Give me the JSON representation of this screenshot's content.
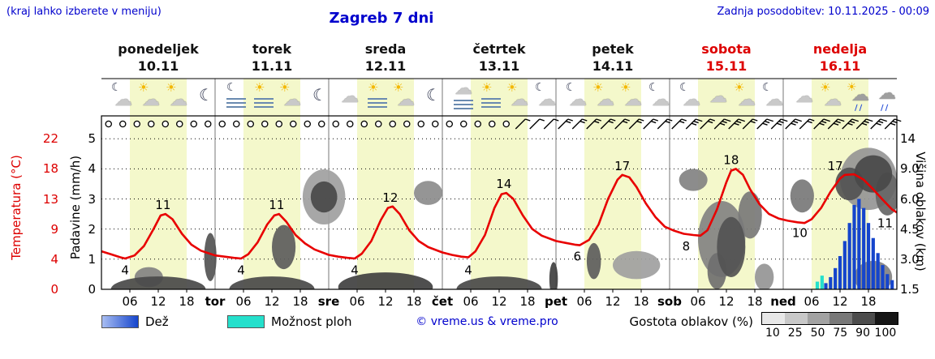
{
  "header": {
    "note": "(kraj lahko izberete v meniju)",
    "title": "Zagreb 7 dni",
    "updated": "Zadnja posodobitev: 10.11.2025 - 00:09"
  },
  "days": [
    {
      "name": "ponedeljek",
      "date": "10.11",
      "weekend": false
    },
    {
      "name": "torek",
      "date": "11.11",
      "weekend": false
    },
    {
      "name": "sreda",
      "date": "12.11",
      "weekend": false
    },
    {
      "name": "četrtek",
      "date": "13.11",
      "weekend": false
    },
    {
      "name": "petek",
      "date": "14.11",
      "weekend": false
    },
    {
      "name": "sobota",
      "date": "15.11",
      "weekend": true
    },
    {
      "name": "nedelja",
      "date": "16.11",
      "weekend": true
    }
  ],
  "axes": {
    "temp": {
      "label": "Temperatura (°C)",
      "ticks": [
        "22",
        "18",
        "13",
        "9",
        "4",
        "0"
      ]
    },
    "precip": {
      "label": "Padavine (mm/h)",
      "ticks": [
        "5",
        "4",
        "3",
        "2",
        "1",
        "0"
      ]
    },
    "cloudheight": {
      "label": "Višina oblakov (km)",
      "ticks": [
        "14",
        "9.0",
        "6.0",
        "4.5",
        "3.0",
        "1.5"
      ]
    },
    "x": {
      "hour_ticks": [
        "06",
        "12",
        "18"
      ],
      "day_boundaries": [
        "tor",
        "sre",
        "čet",
        "pet",
        "sob",
        "ned"
      ]
    }
  },
  "legend": {
    "rain": "Dež",
    "showers": "Možnost ploh",
    "credit": "© vreme.us & vreme.pro",
    "clouds": "Gostota oblakov (%)",
    "cloud_ticks": [
      "10",
      "25",
      "50",
      "75",
      "90",
      "100"
    ]
  },
  "colors": {
    "accent_blue": "#0000cd",
    "red": "#dd0000",
    "band": "#f4f8cb",
    "rain": "#1545cc",
    "shower": "#25e0cc",
    "curve": "#e80000"
  },
  "chart_data": {
    "type": "line",
    "title": "Zagreb 7 dni",
    "x_unit": "hours from 10.11 00:00 (0-168, 7 days)",
    "temp_axis_ticks": [
      0,
      4,
      9,
      13,
      18,
      22
    ],
    "precip_axis_ticks": [
      0,
      1,
      2,
      3,
      4,
      5
    ],
    "cloud_height_ticks_km": [
      1.5,
      3,
      4.5,
      6,
      9,
      14
    ],
    "temperature": [
      [
        0,
        5.3
      ],
      [
        2,
        4.8
      ],
      [
        4,
        4.3
      ],
      [
        5,
        4.1
      ],
      [
        7,
        4.6
      ],
      [
        9,
        6.2
      ],
      [
        11,
        9
      ],
      [
        12.5,
        10.8
      ],
      [
        13.5,
        11
      ],
      [
        15,
        10.3
      ],
      [
        17,
        8.2
      ],
      [
        19,
        6.4
      ],
      [
        21,
        5.4
      ],
      [
        24,
        4.6
      ],
      [
        26,
        4.4
      ],
      [
        28,
        4.2
      ],
      [
        29.5,
        4.1
      ],
      [
        31,
        4.8
      ],
      [
        33,
        6.8
      ],
      [
        35,
        9.6
      ],
      [
        36.5,
        10.8
      ],
      [
        37.5,
        11
      ],
      [
        39,
        10
      ],
      [
        41,
        8
      ],
      [
        43,
        6.6
      ],
      [
        45,
        5.6
      ],
      [
        48,
        4.7
      ],
      [
        50,
        4.4
      ],
      [
        52,
        4.2
      ],
      [
        53.5,
        4.1
      ],
      [
        55,
        4.9
      ],
      [
        57,
        7
      ],
      [
        59,
        10.2
      ],
      [
        60.5,
        11.8
      ],
      [
        61.5,
        12
      ],
      [
        63,
        11
      ],
      [
        65,
        8.8
      ],
      [
        67,
        7
      ],
      [
        69,
        6
      ],
      [
        72,
        5.1
      ],
      [
        74,
        4.7
      ],
      [
        76,
        4.4
      ],
      [
        77.5,
        4.3
      ],
      [
        79,
        5.3
      ],
      [
        81,
        8
      ],
      [
        83,
        11.8
      ],
      [
        84.5,
        13.8
      ],
      [
        85.5,
        14
      ],
      [
        87,
        13
      ],
      [
        89,
        10.8
      ],
      [
        91,
        9
      ],
      [
        93,
        7.9
      ],
      [
        96,
        7
      ],
      [
        98,
        6.7
      ],
      [
        100,
        6.4
      ],
      [
        101,
        6.3
      ],
      [
        103,
        7.2
      ],
      [
        105,
        9.6
      ],
      [
        107,
        13
      ],
      [
        109,
        16.2
      ],
      [
        110,
        17
      ],
      [
        111.5,
        16.6
      ],
      [
        113,
        15
      ],
      [
        115,
        12.4
      ],
      [
        117,
        10.6
      ],
      [
        119,
        9.3
      ],
      [
        121,
        8.7
      ],
      [
        123,
        8.2
      ],
      [
        125,
        8
      ],
      [
        126.5,
        7.9
      ],
      [
        128,
        8.8
      ],
      [
        130,
        11.6
      ],
      [
        132,
        15.8
      ],
      [
        133,
        17.7
      ],
      [
        134,
        18
      ],
      [
        135.5,
        17
      ],
      [
        137,
        14.6
      ],
      [
        139,
        12.3
      ],
      [
        141,
        11
      ],
      [
        143,
        10.4
      ],
      [
        145,
        10.1
      ],
      [
        147,
        9.9
      ],
      [
        148.5,
        9.8
      ],
      [
        150,
        10.3
      ],
      [
        152,
        11.8
      ],
      [
        154,
        14.2
      ],
      [
        156,
        16.4
      ],
      [
        157,
        17
      ],
      [
        159,
        17.1
      ],
      [
        161,
        16.2
      ],
      [
        163,
        14.6
      ],
      [
        165,
        12.9
      ],
      [
        167,
        11.6
      ],
      [
        168,
        11.2
      ]
    ],
    "temp_labels": [
      {
        "v": "4",
        "h": 5,
        "t": 4,
        "pos": "below"
      },
      {
        "v": "11",
        "h": 13,
        "t": 11,
        "pos": "above"
      },
      {
        "v": "4",
        "h": 29.5,
        "t": 4,
        "pos": "below"
      },
      {
        "v": "11",
        "h": 37,
        "t": 11,
        "pos": "above"
      },
      {
        "v": "4",
        "h": 53.5,
        "t": 4,
        "pos": "below"
      },
      {
        "v": "12",
        "h": 61,
        "t": 12,
        "pos": "above"
      },
      {
        "v": "4",
        "h": 77.5,
        "t": 4,
        "pos": "below"
      },
      {
        "v": "14",
        "h": 85,
        "t": 14,
        "pos": "above"
      },
      {
        "v": "6",
        "h": 100.5,
        "t": 6.3,
        "pos": "below"
      },
      {
        "v": "17",
        "h": 110,
        "t": 17,
        "pos": "above"
      },
      {
        "v": "8",
        "h": 123.5,
        "t": 8,
        "pos": "below"
      },
      {
        "v": "18",
        "h": 133,
        "t": 18,
        "pos": "above"
      },
      {
        "v": "10",
        "h": 147.5,
        "t": 10,
        "pos": "below"
      },
      {
        "v": "17",
        "h": 155,
        "t": 17,
        "pos": "above"
      },
      {
        "v": "11",
        "h": 165.5,
        "t": 11.3,
        "pos": "below"
      }
    ],
    "rain_bars_mmh": [
      [
        153,
        0.2
      ],
      [
        154,
        0.4
      ],
      [
        155,
        0.7
      ],
      [
        156,
        1.1
      ],
      [
        157,
        1.6
      ],
      [
        158,
        2.2
      ],
      [
        159,
        2.8
      ],
      [
        160,
        3.0
      ],
      [
        161,
        2.7
      ],
      [
        162,
        2.2
      ],
      [
        163,
        1.7
      ],
      [
        164,
        1.2
      ],
      [
        165,
        0.8
      ],
      [
        166,
        0.5
      ],
      [
        167,
        0.3
      ]
    ],
    "shower_bars_mmh": [
      [
        151.2,
        0.25
      ],
      [
        152.2,
        0.45
      ]
    ],
    "clouds": [
      {
        "h": 47,
        "km": 6.2,
        "hw": 4.5,
        "kh": 1.9,
        "s": 0.35
      },
      {
        "h": 113,
        "km": 2.7,
        "hw": 5,
        "kh": 0.7,
        "s": 0.35
      },
      {
        "h": 162,
        "km": 8.0,
        "hw": 6,
        "kh": 3.0,
        "s": 0.4
      },
      {
        "h": 140,
        "km": 2.1,
        "hw": 2,
        "kh": 0.7,
        "s": 0.4
      },
      {
        "h": 69,
        "km": 6.6,
        "hw": 3,
        "kh": 1.0,
        "s": 0.45
      },
      {
        "h": 10,
        "km": 2.1,
        "hw": 3,
        "kh": 0.5,
        "s": 0.5
      },
      {
        "h": 125,
        "km": 7.9,
        "hw": 3,
        "kh": 1.1,
        "s": 0.5
      },
      {
        "h": 131,
        "km": 4.0,
        "hw": 5,
        "kh": 1.9,
        "s": 0.5
      },
      {
        "h": 163,
        "km": 2.1,
        "hw": 4,
        "kh": 0.9,
        "s": 0.5
      },
      {
        "h": 137,
        "km": 5.2,
        "hw": 2.5,
        "kh": 1.3,
        "s": 0.55
      },
      {
        "h": 148,
        "km": 6.3,
        "hw": 2.5,
        "kh": 1.2,
        "s": 0.55
      },
      {
        "h": 130,
        "km": 2.4,
        "hw": 2,
        "kh": 0.9,
        "s": 0.6
      },
      {
        "h": 166,
        "km": 6.5,
        "hw": 2.5,
        "kh": 1.6,
        "s": 0.65
      },
      {
        "h": 38.5,
        "km": 3.6,
        "hw": 2.5,
        "kh": 1.1,
        "s": 0.7
      },
      {
        "h": 104,
        "km": 2.9,
        "hw": 1.5,
        "kh": 0.9,
        "s": 0.7
      },
      {
        "h": 23,
        "km": 3.1,
        "hw": 1.3,
        "kh": 1.2,
        "s": 0.75
      },
      {
        "h": 133,
        "km": 3.6,
        "hw": 3,
        "kh": 1.5,
        "s": 0.75
      },
      {
        "h": 158,
        "km": 7.5,
        "hw": 3,
        "kh": 1.6,
        "s": 0.75
      },
      {
        "h": 12,
        "km": 1.5,
        "hw": 10,
        "kh": 0.9,
        "s": 0.8
      },
      {
        "h": 36,
        "km": 1.5,
        "hw": 9,
        "kh": 0.9,
        "s": 0.8
      },
      {
        "h": 84,
        "km": 1.5,
        "hw": 9,
        "kh": 0.9,
        "s": 0.8
      },
      {
        "h": 47,
        "km": 6.2,
        "hw": 2.8,
        "kh": 1.1,
        "s": 0.8
      },
      {
        "h": 163,
        "km": 8.5,
        "hw": 4,
        "kh": 2.2,
        "s": 0.8
      },
      {
        "h": 60,
        "km": 1.6,
        "hw": 10,
        "kh": 1.0,
        "s": 0.85
      },
      {
        "h": 95.5,
        "km": 2.0,
        "hw": 0.9,
        "kh": 1.0,
        "s": 0.85
      }
    ],
    "wind_3h": [
      0,
      0,
      0,
      0,
      0,
      0,
      0,
      0,
      0,
      0,
      0,
      0,
      0,
      0,
      0,
      0,
      0,
      0,
      0,
      0,
      0,
      0,
      0,
      0,
      0,
      0,
      0,
      0,
      0,
      1,
      1,
      1,
      2,
      2,
      2,
      2,
      2,
      2,
      2,
      2,
      2,
      3,
      2,
      3,
      3,
      2,
      3,
      3,
      3,
      2,
      3,
      3,
      3,
      3,
      3,
      3
    ],
    "icons": [
      [
        "cloud-moon",
        "sun-cloud",
        "sun-cloud",
        "moon"
      ],
      [
        "fog-moon",
        "fog-sun",
        "sun-cloud",
        "moon"
      ],
      [
        "cloud",
        "fog-sun",
        "sun-cloud",
        "moon"
      ],
      [
        "fog",
        "fog-sun",
        "sun-cloud",
        "cloud-moon"
      ],
      [
        "cloud-moon",
        "sun-cloud",
        "sun-cloud",
        "cloud-moon"
      ],
      [
        "cloud-moon",
        "cloud",
        "sun-cloud",
        "cloud-moon"
      ],
      [
        "cloud",
        "sun-cloud",
        "rain-sun",
        "rain"
      ]
    ]
  }
}
